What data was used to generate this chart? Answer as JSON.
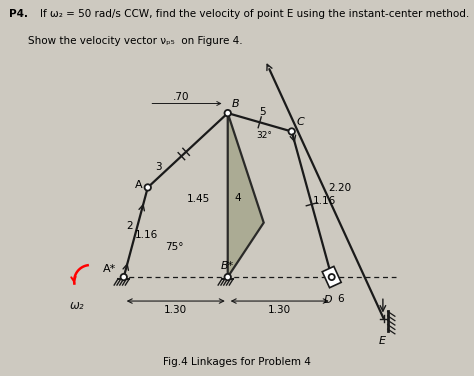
{
  "title_bold": "P4.",
  "title_rest": "If ω₂ = 50 rad/s CCW, find the velocity of point E using the instant-center method.",
  "subtitle": "Show the velocity vector v_{E_5} on Figure 4.",
  "fig_caption": "Fig.4 Linkages for Problem 4",
  "bg_color": "#cdc9c0",
  "link_color": "#1a1a1a",
  "fill_color": "#a8a890",
  "dim_1_30_left": "1.30",
  "dim_1_30_right": "1.30",
  "dim_2_20": "2.20",
  "dim_1_16_left": "1.16",
  "dim_1_16_right": "1.16",
  "dim_1_45": "1.45",
  "dim_70": ".70",
  "dim_3": "3",
  "dim_2": "2",
  "dim_4": "4",
  "dim_5": "5",
  "dim_6": "6",
  "angle_75": "75°",
  "angle_32": "32°",
  "label_A": "A",
  "label_Astar": "A*",
  "label_B": "B",
  "label_Bstar": "B*",
  "label_C": "C",
  "label_D": "D",
  "label_E": "E",
  "omega_label": "ω₂"
}
